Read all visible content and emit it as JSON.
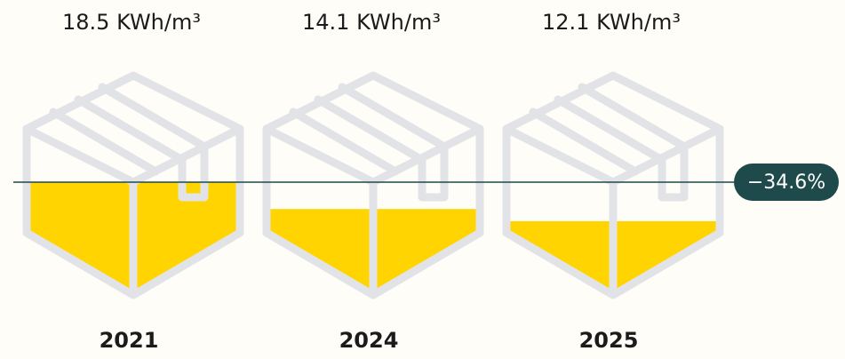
{
  "chart_data": {
    "type": "bar",
    "categories": [
      "2021",
      "2024",
      "2025"
    ],
    "values": [
      18.5,
      14.1,
      12.1
    ],
    "value_labels": [
      "18.5 KWh/m³",
      "14.1 KWh/m³",
      "12.1 KWh/m³"
    ],
    "color": "#ffd400",
    "annotation": "−34.6%"
  }
}
